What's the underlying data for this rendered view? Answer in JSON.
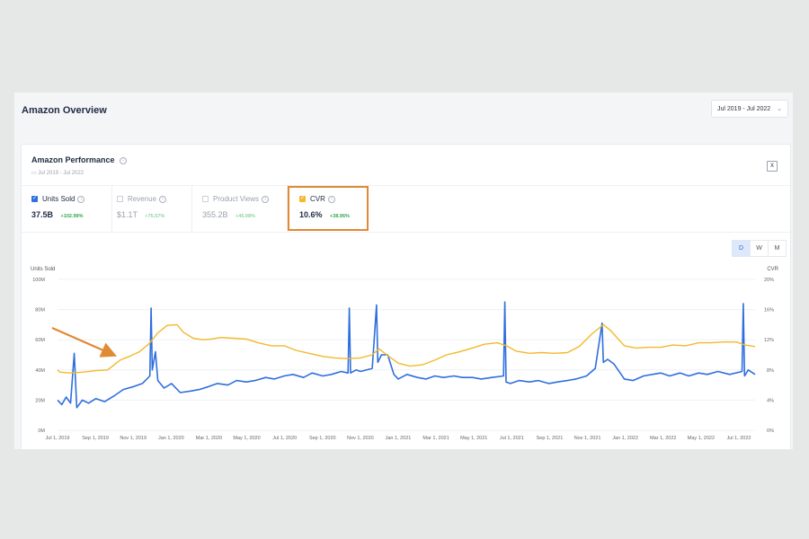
{
  "header": {
    "title": "Amazon Overview",
    "date_range": "Jul 2019 - Jul 2022"
  },
  "card": {
    "title": "Amazon Performance",
    "subtitle": "Jul 2019 - Jul 2022",
    "export_icon": "excel-export-icon"
  },
  "metrics": [
    {
      "label": "Units Sold",
      "value": "37.5B",
      "change": "+102.99%",
      "checked": true,
      "color": "#2f6fde"
    },
    {
      "label": "Revenue",
      "value": "$1.1T",
      "change": "+75.57%",
      "checked": false
    },
    {
      "label": "Product Views",
      "value": "355.2B",
      "change": "+45.08%",
      "checked": false
    },
    {
      "label": "CVR",
      "value": "10.6%",
      "change": "+38.96%",
      "checked": true,
      "color": "#f2b92b"
    }
  ],
  "granularity": [
    "D",
    "W",
    "M"
  ],
  "granularity_selected": "D",
  "colors": {
    "units_sold": "#2f6fde",
    "cvr": "#f2b92b",
    "highlight": "#e08a33",
    "positive": "#2fa84f"
  },
  "chart_data": {
    "type": "line",
    "y_left_label": "Units Sold",
    "y_right_label": "CVR",
    "y_left_ticks": [
      "0M",
      "20M",
      "40M",
      "60M",
      "80M",
      "100M"
    ],
    "y_right_ticks": [
      "0%",
      "4%",
      "8%",
      "12%",
      "16%",
      "20%"
    ],
    "ylim_left": [
      0,
      100
    ],
    "ylim_right": [
      0,
      20
    ],
    "x_ticks": [
      "Jul 1, 2019",
      "Sep 1, 2019",
      "Nov 1, 2019",
      "Jan 1, 2020",
      "Mar 1, 2020",
      "May 1, 2020",
      "Jul 1, 2020",
      "Sep 1, 2020",
      "Nov 1, 2020",
      "Jan 1, 2021",
      "Mar 1, 2021",
      "May 1, 2021",
      "Jul 1, 2021",
      "Sep 1, 2021",
      "Nov 1, 2021",
      "Jan 1, 2022",
      "Mar 1, 2022",
      "May 1, 2022",
      "Jul 1, 2022"
    ],
    "x_range": [
      "2019-07-01",
      "2022-07-31"
    ],
    "grid": true,
    "series": [
      {
        "name": "Units Sold",
        "axis": "left",
        "unit": "M",
        "points": [
          [
            "2019-07-01",
            20
          ],
          [
            "2019-07-08",
            17
          ],
          [
            "2019-07-15",
            22
          ],
          [
            "2019-07-22",
            18
          ],
          [
            "2019-07-28",
            51
          ],
          [
            "2019-08-01",
            15
          ],
          [
            "2019-08-10",
            20
          ],
          [
            "2019-08-20",
            18
          ],
          [
            "2019-09-01",
            21
          ],
          [
            "2019-09-15",
            19
          ],
          [
            "2019-10-01",
            23
          ],
          [
            "2019-10-15",
            27
          ],
          [
            "2019-11-01",
            29
          ],
          [
            "2019-11-15",
            31
          ],
          [
            "2019-11-27",
            36
          ],
          [
            "2019-11-29",
            81
          ],
          [
            "2019-12-01",
            40
          ],
          [
            "2019-12-06",
            52
          ],
          [
            "2019-12-10",
            33
          ],
          [
            "2019-12-20",
            28
          ],
          [
            "2020-01-01",
            31
          ],
          [
            "2020-01-15",
            25
          ],
          [
            "2020-02-01",
            26
          ],
          [
            "2020-02-15",
            27
          ],
          [
            "2020-03-01",
            29
          ],
          [
            "2020-03-15",
            31
          ],
          [
            "2020-04-01",
            30
          ],
          [
            "2020-04-15",
            33
          ],
          [
            "2020-05-01",
            32
          ],
          [
            "2020-05-15",
            33
          ],
          [
            "2020-06-01",
            35
          ],
          [
            "2020-06-15",
            34
          ],
          [
            "2020-07-01",
            36
          ],
          [
            "2020-07-15",
            37
          ],
          [
            "2020-08-01",
            35
          ],
          [
            "2020-08-15",
            38
          ],
          [
            "2020-09-01",
            36
          ],
          [
            "2020-09-15",
            37
          ],
          [
            "2020-10-01",
            39
          ],
          [
            "2020-10-12",
            38
          ],
          [
            "2020-10-14",
            81
          ],
          [
            "2020-10-16",
            38
          ],
          [
            "2020-10-25",
            40
          ],
          [
            "2020-11-01",
            39
          ],
          [
            "2020-11-20",
            41
          ],
          [
            "2020-11-27",
            83
          ],
          [
            "2020-11-29",
            45
          ],
          [
            "2020-12-05",
            50
          ],
          [
            "2020-12-15",
            50
          ],
          [
            "2020-12-25",
            37
          ],
          [
            "2021-01-01",
            34
          ],
          [
            "2021-01-15",
            37
          ],
          [
            "2021-02-01",
            35
          ],
          [
            "2021-02-15",
            34
          ],
          [
            "2021-03-01",
            36
          ],
          [
            "2021-03-15",
            35
          ],
          [
            "2021-04-01",
            36
          ],
          [
            "2021-04-15",
            35
          ],
          [
            "2021-05-01",
            35
          ],
          [
            "2021-05-15",
            34
          ],
          [
            "2021-06-01",
            35
          ],
          [
            "2021-06-20",
            36
          ],
          [
            "2021-06-22",
            85
          ],
          [
            "2021-06-24",
            32
          ],
          [
            "2021-07-01",
            31
          ],
          [
            "2021-07-15",
            33
          ],
          [
            "2021-08-01",
            32
          ],
          [
            "2021-08-15",
            33
          ],
          [
            "2021-09-01",
            31
          ],
          [
            "2021-09-15",
            32
          ],
          [
            "2021-10-01",
            33
          ],
          [
            "2021-10-15",
            34
          ],
          [
            "2021-11-01",
            36
          ],
          [
            "2021-11-15",
            41
          ],
          [
            "2021-11-26",
            71
          ],
          [
            "2021-11-28",
            45
          ],
          [
            "2021-12-05",
            47
          ],
          [
            "2021-12-15",
            44
          ],
          [
            "2022-01-01",
            34
          ],
          [
            "2022-01-15",
            33
          ],
          [
            "2022-02-01",
            36
          ],
          [
            "2022-02-15",
            37
          ],
          [
            "2022-03-01",
            38
          ],
          [
            "2022-03-15",
            36
          ],
          [
            "2022-04-01",
            38
          ],
          [
            "2022-04-15",
            36
          ],
          [
            "2022-05-01",
            38
          ],
          [
            "2022-05-15",
            37
          ],
          [
            "2022-06-01",
            39
          ],
          [
            "2022-06-20",
            37
          ],
          [
            "2022-07-10",
            39
          ],
          [
            "2022-07-12",
            84
          ],
          [
            "2022-07-14",
            36
          ],
          [
            "2022-07-20",
            40
          ],
          [
            "2022-07-31",
            37
          ]
        ]
      },
      {
        "name": "CVR",
        "axis": "right",
        "unit": "%",
        "points": [
          [
            "2019-07-01",
            8.0
          ],
          [
            "2019-07-05",
            7.7
          ],
          [
            "2019-07-20",
            7.6
          ],
          [
            "2019-08-10",
            7.7
          ],
          [
            "2019-09-01",
            7.9
          ],
          [
            "2019-09-20",
            8.0
          ],
          [
            "2019-10-10",
            9.3
          ],
          [
            "2019-10-25",
            9.8
          ],
          [
            "2019-11-10",
            10.4
          ],
          [
            "2019-11-25",
            11.4
          ],
          [
            "2019-12-10",
            12.9
          ],
          [
            "2019-12-25",
            13.9
          ],
          [
            "2020-01-10",
            14.0
          ],
          [
            "2020-01-20",
            13.0
          ],
          [
            "2020-02-05",
            12.2
          ],
          [
            "2020-02-20",
            12.0
          ],
          [
            "2020-03-05",
            12.1
          ],
          [
            "2020-03-20",
            12.3
          ],
          [
            "2020-04-10",
            12.2
          ],
          [
            "2020-05-01",
            12.1
          ],
          [
            "2020-05-20",
            11.6
          ],
          [
            "2020-06-10",
            11.2
          ],
          [
            "2020-07-01",
            11.2
          ],
          [
            "2020-07-20",
            10.6
          ],
          [
            "2020-08-10",
            10.2
          ],
          [
            "2020-09-01",
            9.8
          ],
          [
            "2020-09-20",
            9.6
          ],
          [
            "2020-10-10",
            9.5
          ],
          [
            "2020-11-01",
            9.6
          ],
          [
            "2020-11-20",
            10.0
          ],
          [
            "2020-12-01",
            10.8
          ],
          [
            "2020-12-15",
            9.9
          ],
          [
            "2021-01-01",
            8.9
          ],
          [
            "2021-01-20",
            8.5
          ],
          [
            "2021-02-10",
            8.7
          ],
          [
            "2021-03-01",
            9.3
          ],
          [
            "2021-03-20",
            10.0
          ],
          [
            "2021-04-10",
            10.4
          ],
          [
            "2021-05-01",
            10.9
          ],
          [
            "2021-05-20",
            11.4
          ],
          [
            "2021-06-10",
            11.6
          ],
          [
            "2021-06-25",
            11.2
          ],
          [
            "2021-07-10",
            10.5
          ],
          [
            "2021-08-01",
            10.2
          ],
          [
            "2021-08-20",
            10.3
          ],
          [
            "2021-09-10",
            10.2
          ],
          [
            "2021-10-01",
            10.3
          ],
          [
            "2021-10-20",
            11.1
          ],
          [
            "2021-11-10",
            12.8
          ],
          [
            "2021-11-28",
            14.0
          ],
          [
            "2021-12-10",
            13.2
          ],
          [
            "2022-01-01",
            11.2
          ],
          [
            "2022-01-20",
            10.9
          ],
          [
            "2022-02-10",
            11.0
          ],
          [
            "2022-03-01",
            11.0
          ],
          [
            "2022-03-20",
            11.3
          ],
          [
            "2022-04-10",
            11.2
          ],
          [
            "2022-05-01",
            11.6
          ],
          [
            "2022-05-20",
            11.6
          ],
          [
            "2022-06-10",
            11.7
          ],
          [
            "2022-07-01",
            11.7
          ],
          [
            "2022-07-15",
            11.3
          ],
          [
            "2022-07-31",
            11.1
          ]
        ]
      }
    ]
  }
}
